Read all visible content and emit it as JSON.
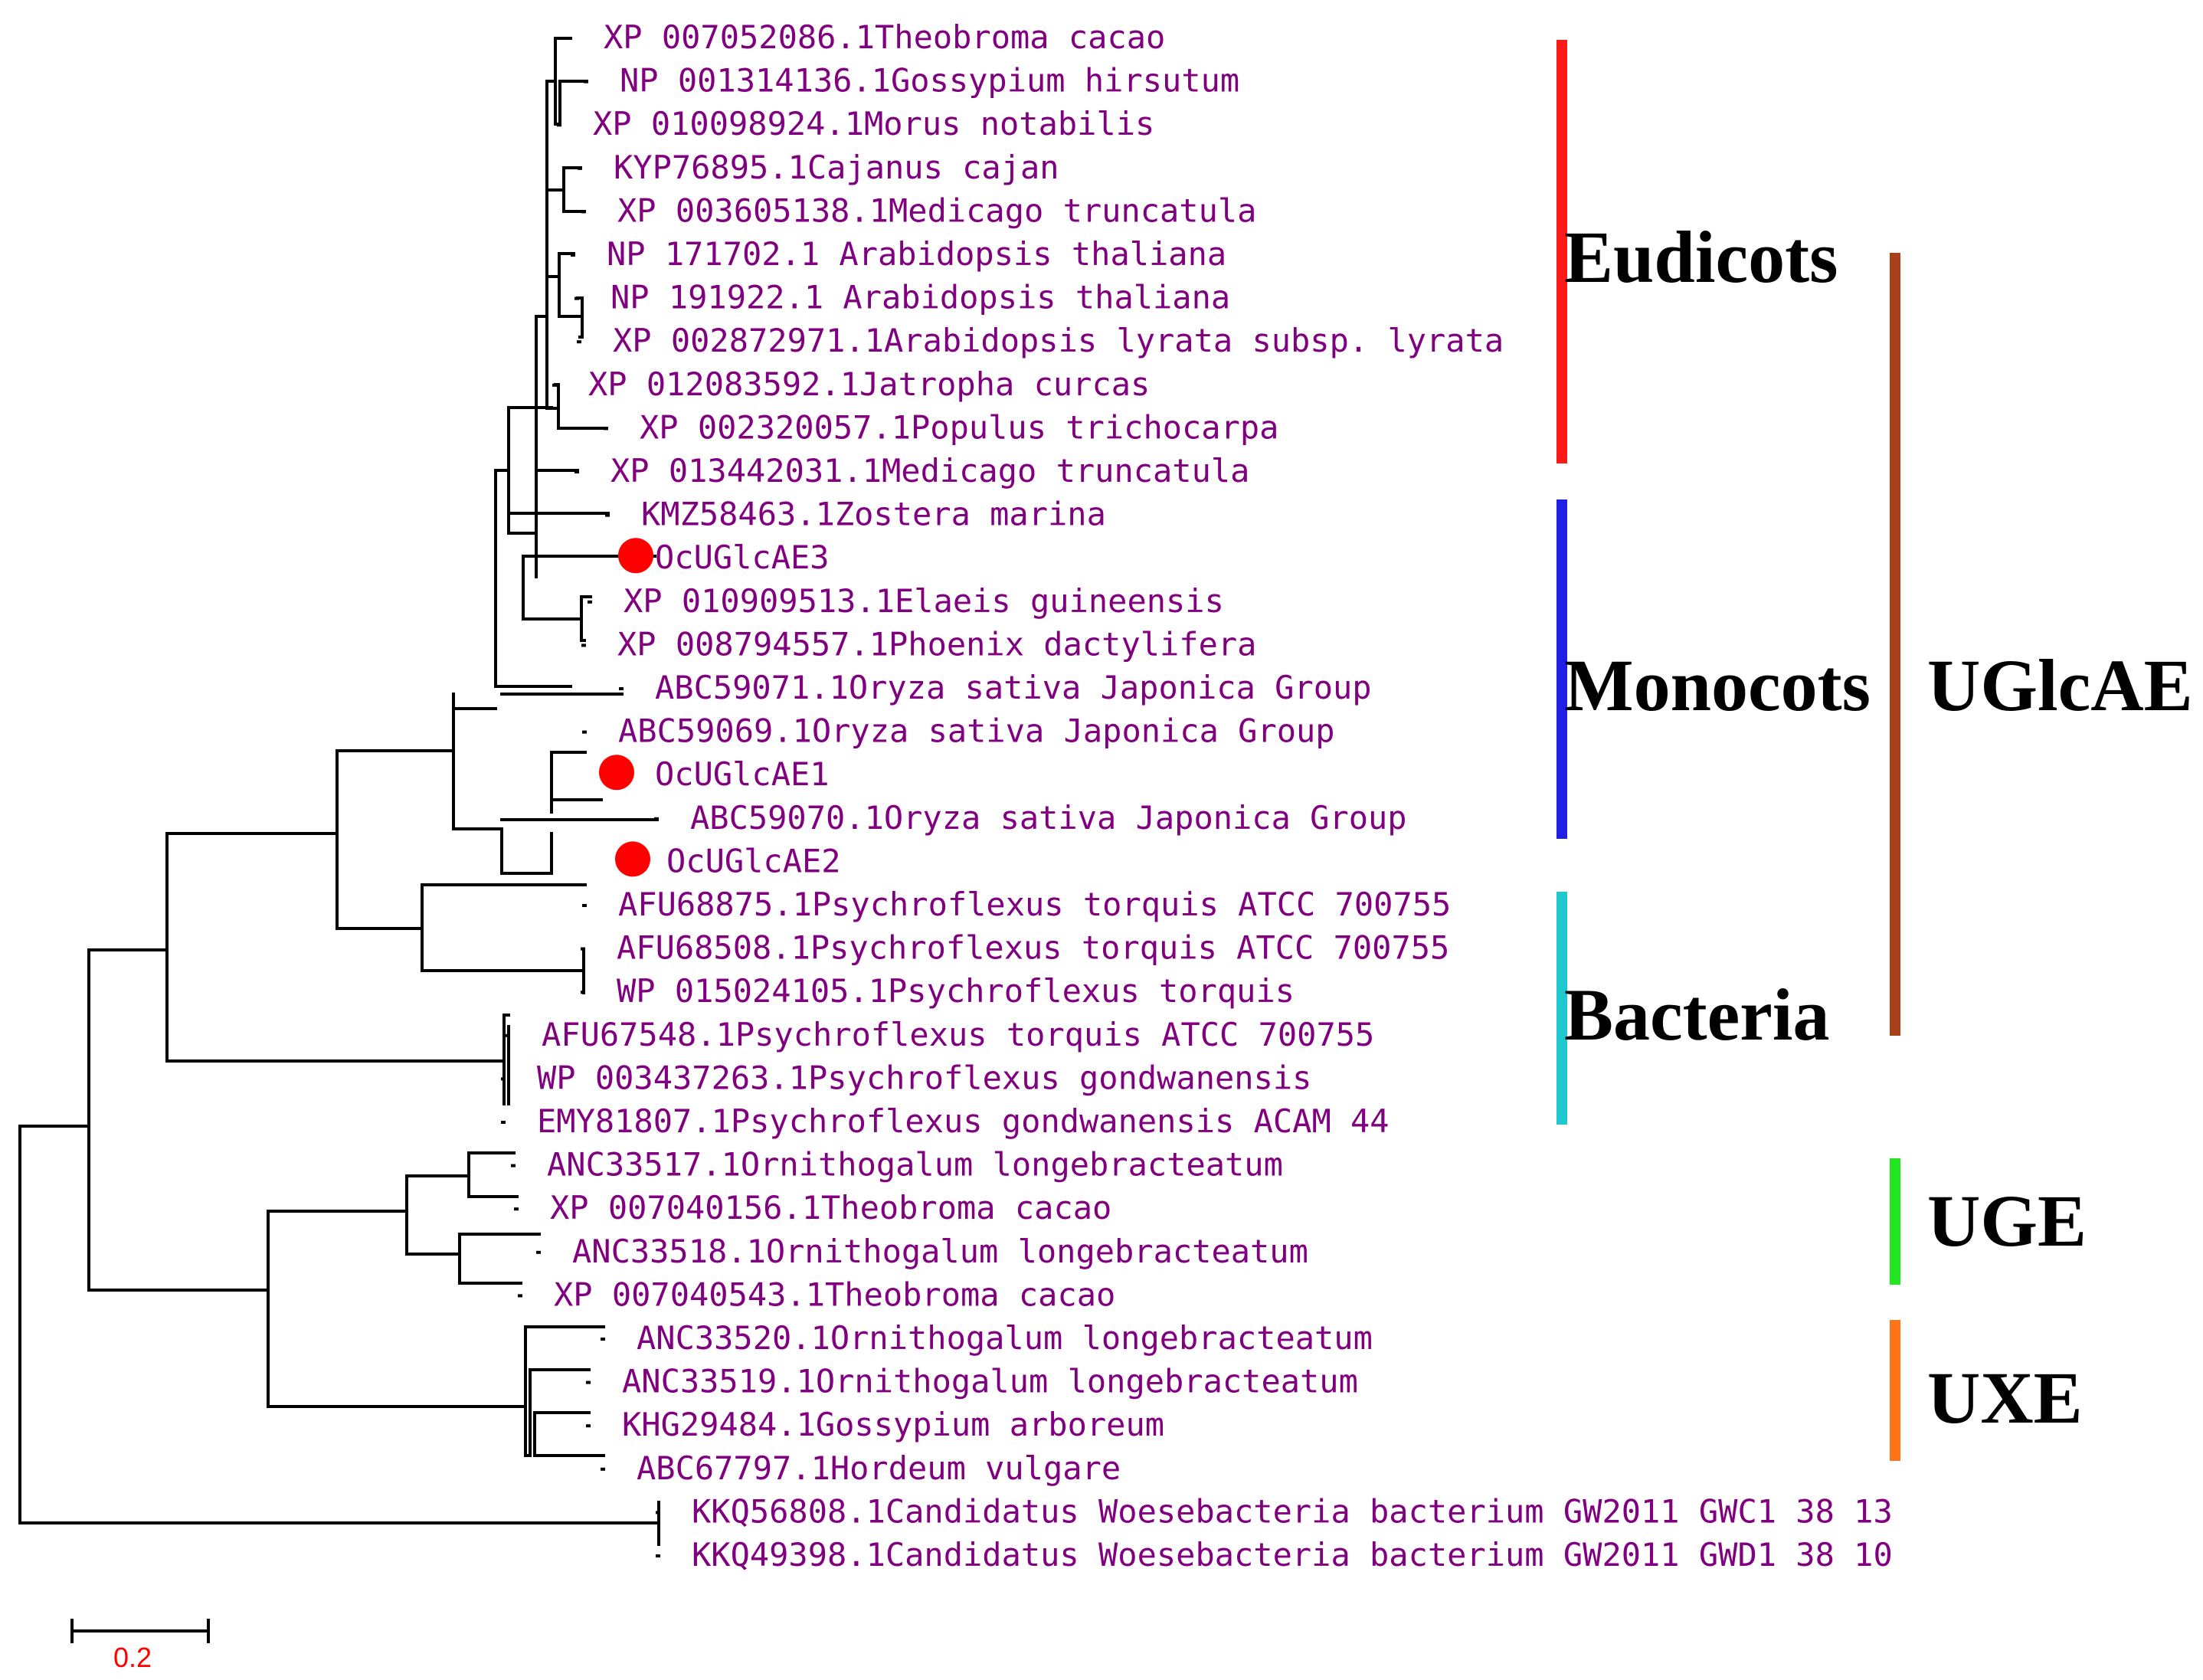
{
  "leaves": [
    "XP 007052086.1Theobroma cacao",
    "NP 001314136.1Gossypium hirsutum",
    "XP 010098924.1Morus notabilis",
    "KYP76895.1Cajanus cajan",
    "XP 003605138.1Medicago truncatula",
    "NP 171702.1 Arabidopsis thaliana",
    "NP 191922.1 Arabidopsis thaliana",
    "XP 002872971.1Arabidopsis lyrata subsp. lyrata",
    "XP 012083592.1Jatropha curcas",
    "XP 002320057.1Populus trichocarpa",
    "XP 013442031.1Medicago truncatula",
    "KMZ58463.1Zostera marina",
    "OcUGlcAE3",
    "XP 010909513.1Elaeis guineensis",
    "XP 008794557.1Phoenix dactylifera",
    "ABC59071.1Oryza sativa Japonica Group",
    "ABC59069.1Oryza sativa Japonica Group",
    "OcUGlcAE1",
    "ABC59070.1Oryza sativa Japonica Group",
    "OcUGlcAE2",
    "AFU68875.1Psychroflexus torquis ATCC 700755",
    "AFU68508.1Psychroflexus torquis ATCC 700755",
    "WP 015024105.1Psychroflexus torquis",
    "AFU67548.1Psychroflexus torquis ATCC 700755",
    "WP 003437263.1Psychroflexus gondwanensis",
    "EMY81807.1Psychroflexus gondwanensis ACAM 44",
    "ANC33517.1Ornithogalum longebracteatum",
    "XP 007040156.1Theobroma cacao",
    "ANC33518.1Ornithogalum longebracteatum",
    "XP 007040543.1Theobroma cacao",
    "ANC33520.1Ornithogalum longebracteatum",
    "ANC33519.1Ornithogalum longebracteatum",
    "KHG29484.1Gossypium arboreum",
    "ABC67797.1Hordeum vulgare",
    "KKQ56808.1Candidatus Woesebacteria bacterium GW2011 GWC1 38 13",
    "KKQ49398.1Candidatus Woesebacteria bacterium GW2011 GWD1 38 10"
  ],
  "highlighted_leaves": [
    "OcUGlcAE3",
    "OcUGlcAE1",
    "OcUGlcAE2"
  ],
  "clades": {
    "eudicots": {
      "label": "Eudicots",
      "color": "#ff1a1a"
    },
    "monocots": {
      "label": "Monocots",
      "color": "#1f1fe6"
    },
    "bacteria": {
      "label": "Bacteria",
      "color": "#1ec8cc"
    },
    "uglcae": {
      "label": "UGlcAE",
      "color": "#a8401a"
    },
    "uge": {
      "label": "UGE",
      "color": "#22e622"
    },
    "uxe": {
      "label": "UXE",
      "color": "#ff7418"
    }
  },
  "scale_bar": {
    "label": "0.2"
  },
  "colors": {
    "leaf_text": "#800080",
    "marker": "#ff0000",
    "branch": "#000000"
  }
}
